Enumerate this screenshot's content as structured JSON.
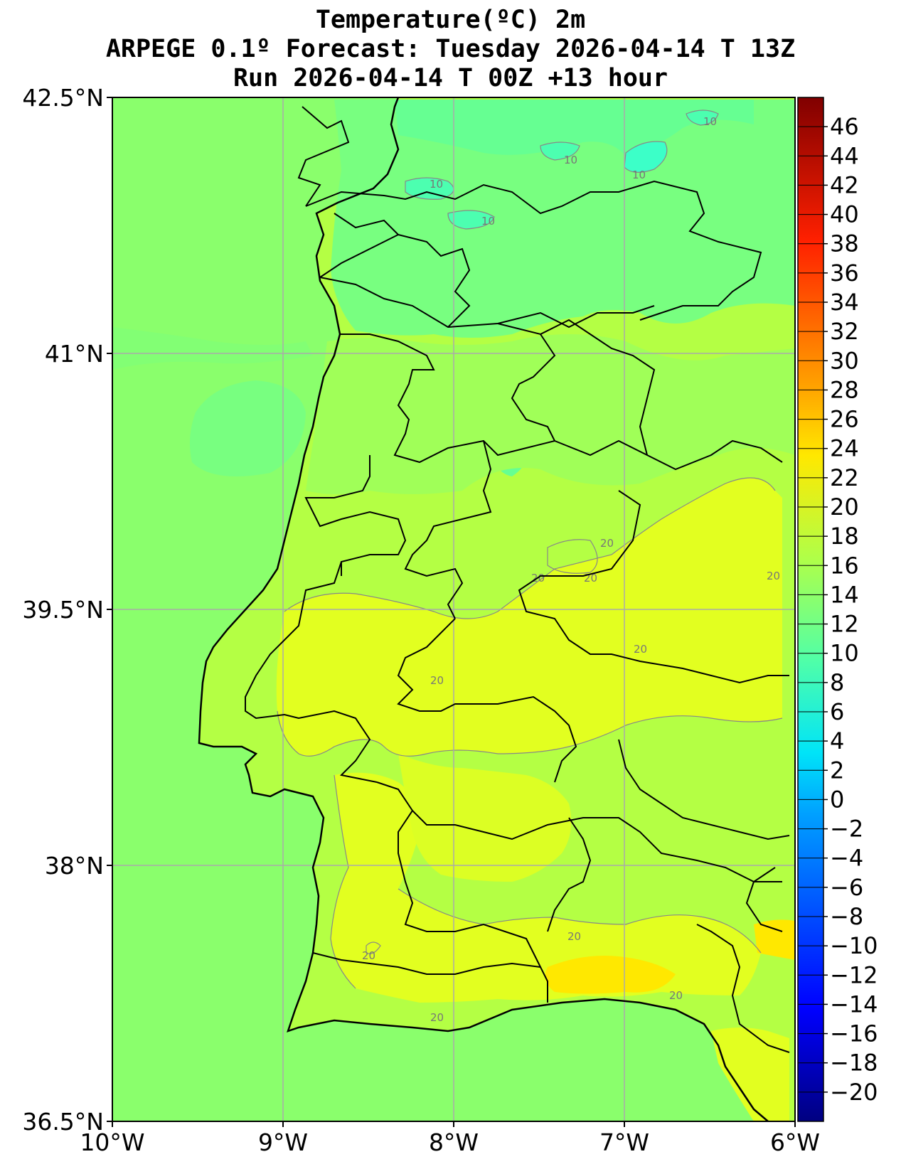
{
  "title": {
    "line1": "Temperature(ºC) 2m",
    "line2": "ARPEGE 0.1º Forecast: Tuesday 2026-04-14 T 13Z",
    "line3": "Run 2026-04-14 T 00Z +13 hour"
  },
  "map": {
    "lon_range": [
      -10,
      -6
    ],
    "lat_range": [
      36.5,
      42.5
    ],
    "lon_ticks": [
      "10°W",
      "9°W",
      "8°W",
      "7°W",
      "6°W"
    ],
    "lat_ticks": [
      "42.5°N",
      "41°N",
      "39.5°N",
      "38°N",
      "36.5°N"
    ],
    "grid": true,
    "contour_interval_labels": [
      "10",
      "10",
      "10",
      "10",
      "10",
      "20",
      "20",
      "20",
      "20",
      "20",
      "20",
      "20",
      "20",
      "20",
      "20"
    ]
  },
  "colorbar": {
    "min": -22,
    "max": 48,
    "step": 2,
    "labels": [
      "46",
      "44",
      "42",
      "40",
      "38",
      "36",
      "34",
      "32",
      "30",
      "28",
      "26",
      "24",
      "22",
      "20",
      "18",
      "16",
      "14",
      "12",
      "10",
      "8",
      "6",
      "4",
      "2",
      "0",
      "−2",
      "−4",
      "−6",
      "−8",
      "−10",
      "−12",
      "−14",
      "−16",
      "−18",
      "−20"
    ]
  },
  "colors": {
    "sea": "#8aff6c",
    "land_base": "#b4ff44",
    "warm_land": "#e6ff1c",
    "hot_spot": "#ffe800",
    "cool_land": "#72ff86",
    "cold_spot": "#3cffb8",
    "border": "#000000",
    "grid": "#aaaaaa"
  }
}
